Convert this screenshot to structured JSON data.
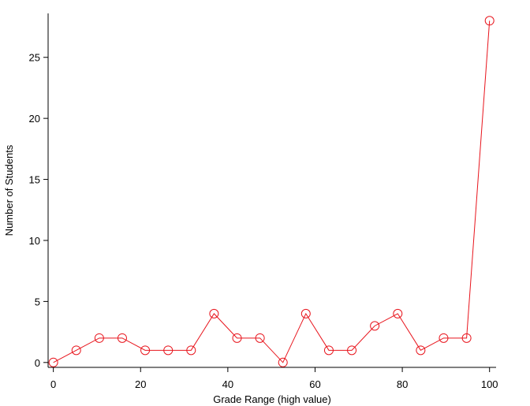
{
  "chart_data": {
    "type": "line",
    "xlabel": "Grade Range (high value)",
    "ylabel": "Number of Students",
    "xlim": [
      -1.2,
      101.5
    ],
    "ylim": [
      -0.4,
      28.6
    ],
    "xticks": [
      0,
      20,
      40,
      60,
      80,
      100
    ],
    "yticks": [
      0,
      5,
      10,
      15,
      20,
      25
    ],
    "grid": false,
    "series": [
      {
        "color": "#e8141c",
        "marker": "circle-open",
        "x": [
          0,
          5.26,
          10.53,
          15.79,
          21.05,
          26.32,
          31.58,
          36.84,
          42.11,
          47.37,
          52.63,
          57.89,
          63.16,
          68.42,
          73.68,
          78.95,
          84.21,
          89.47,
          94.74,
          100
        ],
        "y": [
          0,
          1,
          2,
          2,
          1,
          1,
          1,
          4,
          2,
          2,
          0,
          4,
          1,
          1,
          3,
          4,
          1,
          2,
          2,
          28
        ]
      }
    ]
  }
}
